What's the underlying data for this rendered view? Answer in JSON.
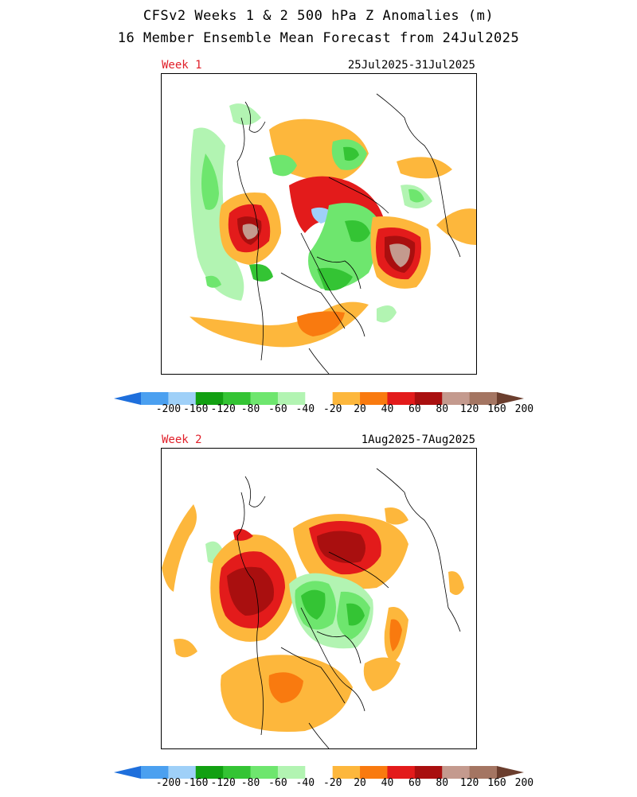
{
  "title_line1": "CFSv2 Weeks 1 & 2 500 hPa Z Anomalies (m)",
  "title_line2": "16 Member Ensemble Mean Forecast from 24Jul2025",
  "panels": [
    {
      "week_label": "Week 1",
      "date_range": "25Jul2025-31Jul2025"
    },
    {
      "week_label": "Week 2",
      "date_range": "1Aug2025-7Aug2025"
    }
  ],
  "colorbar": {
    "ticks": [
      "-200",
      "-160",
      "-120",
      "-80",
      "-60",
      "-40",
      "-20",
      "20",
      "40",
      "60",
      "80",
      "120",
      "160",
      "200"
    ],
    "colors": [
      "#1e6fdc",
      "#4ba0f0",
      "#9fd0f8",
      "#12a012",
      "#34c434",
      "#6ee66e",
      "#b2f4b2",
      "#ffffff",
      "#fdb73c",
      "#f97a0f",
      "#e31b1b",
      "#a90f0f",
      "#c49a8e",
      "#a47562",
      "#6b3e2e"
    ]
  },
  "palette": {
    "orange_light": "#fdb73c",
    "orange": "#f97a0f",
    "red": "#e31b1b",
    "dark_red": "#a90f0f",
    "brown_light": "#c49a8e",
    "green_pale": "#b2f4b2",
    "green_light": "#6ee66e",
    "green": "#34c434",
    "green_dark": "#12a012",
    "blue_light": "#9fd0f8"
  }
}
